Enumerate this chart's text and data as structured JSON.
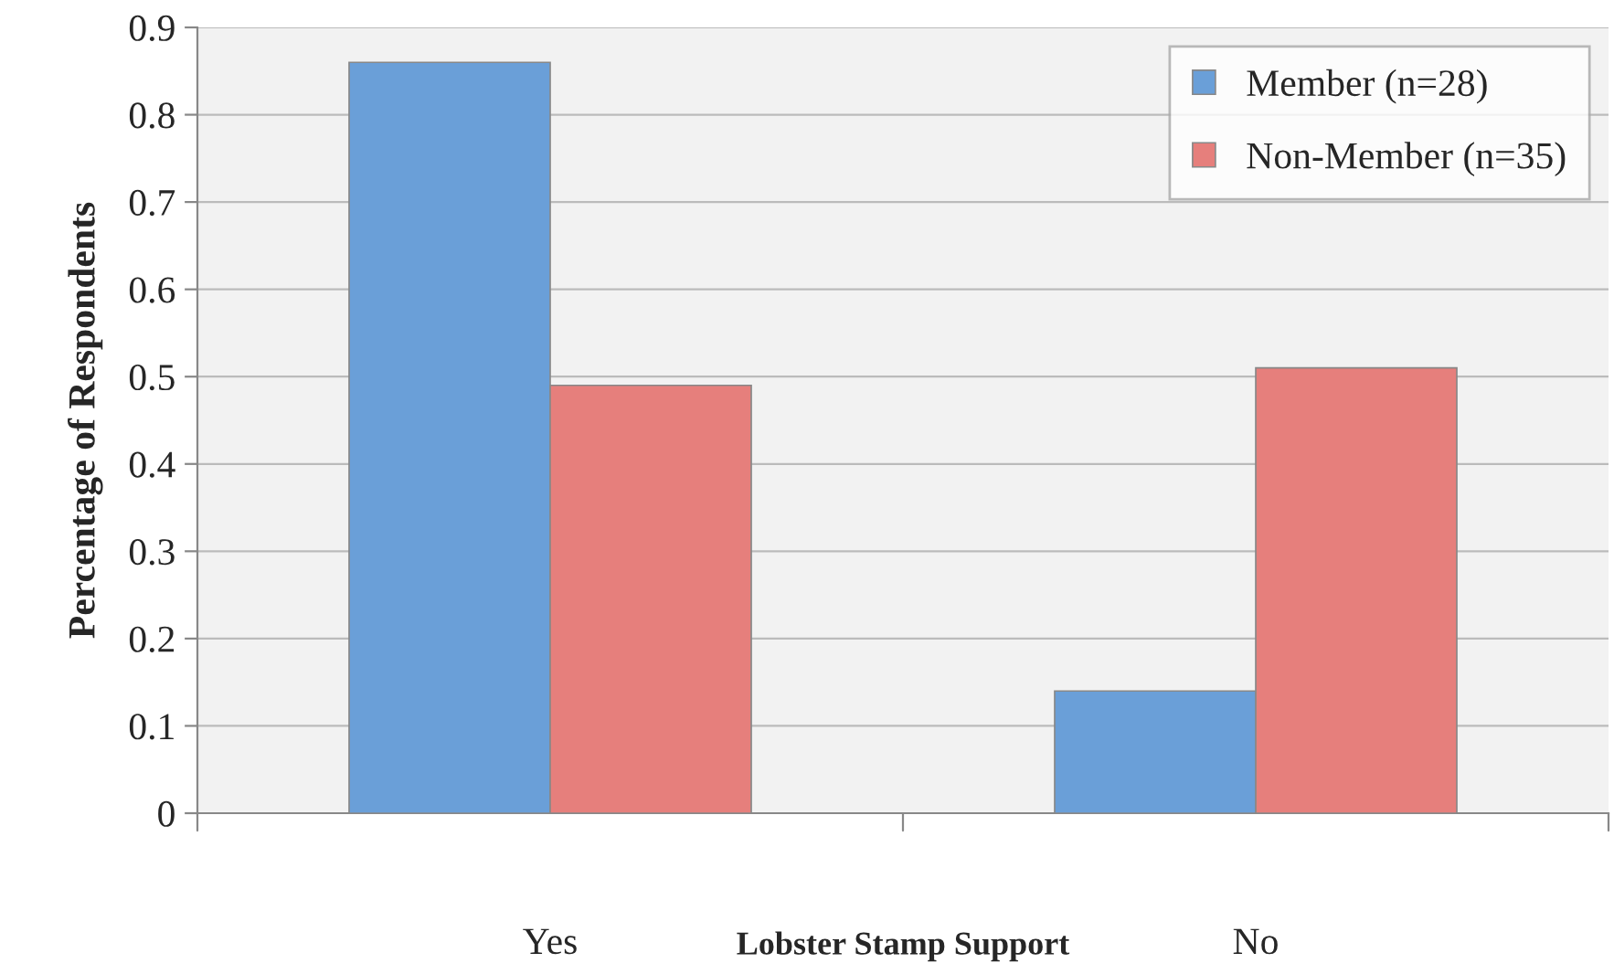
{
  "chart_data": {
    "type": "bar",
    "xlabel": "Lobster Stamp Support",
    "ylabel": "Percentage of Respondents",
    "categories": [
      "Yes",
      "No"
    ],
    "series": [
      {
        "name": "Member (n=28)",
        "color": "#6a9fd8",
        "values": [
          0.86,
          0.14
        ]
      },
      {
        "name": "Non-Member (n=35)",
        "color": "#e67f7c",
        "values": [
          0.49,
          0.51
        ]
      }
    ],
    "ylim": [
      0,
      0.9
    ],
    "yticks": [
      0,
      0.1,
      0.2,
      0.3,
      0.4,
      0.5,
      0.6,
      0.7,
      0.8,
      0.9
    ],
    "grid": "y",
    "legend": "top right"
  }
}
